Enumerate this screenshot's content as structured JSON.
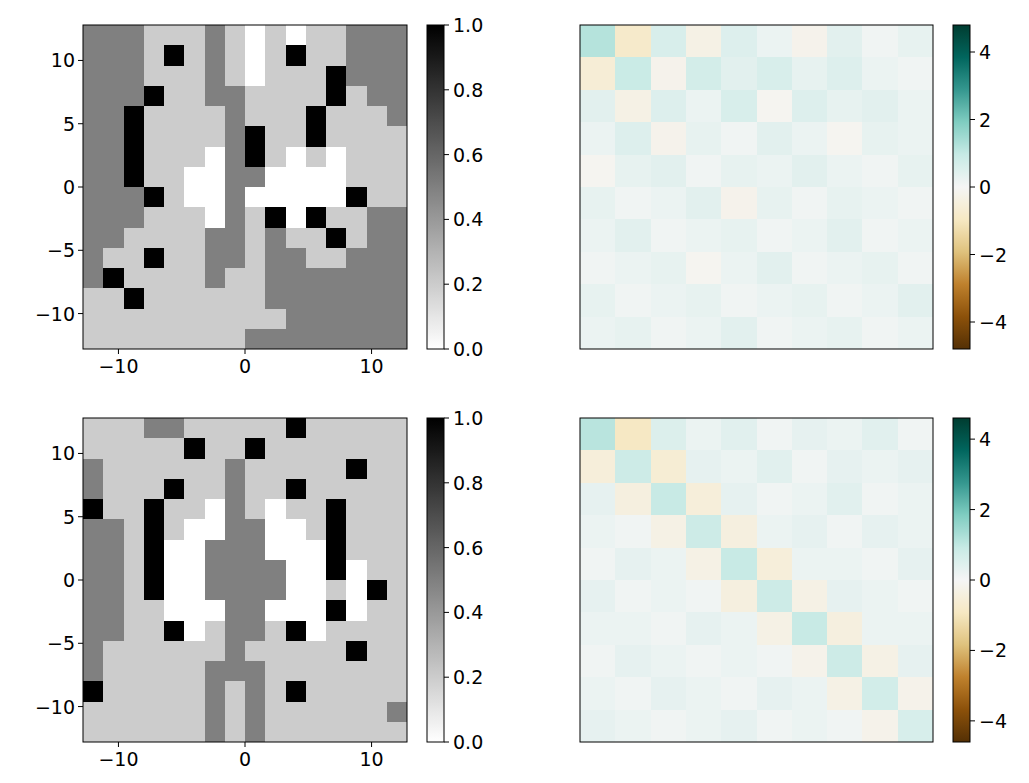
{
  "chart_data": [
    {
      "type": "heatmap",
      "color": "gray_r",
      "xlim": [
        -12.8,
        12.8
      ],
      "ylim": [
        -12.8,
        12.8
      ],
      "xticks": [
        -10,
        0,
        10
      ],
      "yticks": [
        -10,
        -5,
        0,
        5,
        10
      ],
      "colorbar": {
        "range": [
          0,
          1
        ],
        "ticks": [
          {
            "value": 0,
            "label": "0.0"
          },
          {
            "value": 0.2,
            "label": "0.2"
          },
          {
            "value": 0.4,
            "label": "0.4"
          },
          {
            "value": 0.6,
            "label": "0.6"
          },
          {
            "value": 0.8,
            "label": "0.8"
          },
          {
            "value": 1,
            "label": "1.0"
          }
        ]
      },
      "cells": [
        [
          0.5,
          0.5,
          0.5,
          0.2,
          0.2,
          0.2,
          0.5,
          0.2,
          0,
          0.2,
          0,
          0.2,
          0.2,
          0.5,
          0.5,
          0.5
        ],
        [
          0.5,
          0.5,
          0.5,
          0.2,
          1,
          0.2,
          0.5,
          0.2,
          0,
          0.2,
          1,
          0.2,
          0.2,
          0.5,
          0.5,
          0.5
        ],
        [
          0.5,
          0.5,
          0.5,
          0.2,
          0.2,
          0.2,
          0.5,
          0.2,
          0,
          0.2,
          0.2,
          0.2,
          1,
          0.5,
          0.5,
          0.5
        ],
        [
          0.5,
          0.5,
          0.5,
          1,
          0.2,
          0.2,
          0.5,
          0.5,
          0.2,
          0.2,
          0.2,
          0.2,
          1,
          0.2,
          0.5,
          0.5
        ],
        [
          0.5,
          0.5,
          1,
          0.2,
          0.2,
          0.2,
          0.2,
          0.5,
          0.2,
          0.2,
          0.2,
          1,
          0.2,
          0.2,
          0.2,
          0.5
        ],
        [
          0.5,
          0.5,
          1,
          0.2,
          0.2,
          0.2,
          0.2,
          0.5,
          1,
          0.2,
          0.2,
          1,
          0.2,
          0.2,
          0.2,
          0.2
        ],
        [
          0.5,
          0.5,
          1,
          0.2,
          0.2,
          0.2,
          0,
          0.5,
          1,
          0.2,
          0,
          0.2,
          0,
          0.2,
          0.2,
          0.2
        ],
        [
          0.5,
          0.5,
          1,
          0.2,
          0.2,
          0,
          0,
          0.5,
          0.5,
          0,
          0,
          0,
          0,
          0.2,
          0.2,
          0.2
        ],
        [
          0.5,
          0.5,
          0.5,
          1,
          0.2,
          0,
          0,
          0.5,
          0,
          0,
          0,
          0,
          0,
          1,
          0.2,
          0.2
        ],
        [
          0.5,
          0.5,
          0.5,
          0.2,
          0.2,
          0.2,
          0,
          0.5,
          0.2,
          1,
          0,
          1,
          0.2,
          0.2,
          0.5,
          0.5
        ],
        [
          0.5,
          0.5,
          0.2,
          0.2,
          0.2,
          0.2,
          0.5,
          0.5,
          0.2,
          0.5,
          0.2,
          0.2,
          1,
          0.2,
          0.5,
          0.5
        ],
        [
          0.5,
          0.2,
          0.2,
          1,
          0.2,
          0.2,
          0.5,
          0.5,
          0.2,
          0.5,
          0.5,
          0.2,
          0.2,
          0.5,
          0.5,
          0.5
        ],
        [
          0.5,
          1,
          0.2,
          0.2,
          0.2,
          0.2,
          0.5,
          0.2,
          0.2,
          0.5,
          0.5,
          0.5,
          0.5,
          0.5,
          0.5,
          0.5
        ],
        [
          0.2,
          0.2,
          1,
          0.2,
          0.2,
          0.2,
          0.2,
          0.2,
          0.2,
          0.5,
          0.5,
          0.5,
          0.5,
          0.5,
          0.5,
          0.5
        ],
        [
          0.2,
          0.2,
          0.2,
          0.2,
          0.2,
          0.2,
          0.2,
          0.2,
          0.2,
          0.2,
          0.5,
          0.5,
          0.5,
          0.5,
          0.5,
          0.5
        ],
        [
          0.2,
          0.2,
          0.2,
          0.2,
          0.2,
          0.2,
          0.2,
          0.2,
          0.5,
          0.5,
          0.5,
          0.5,
          0.5,
          0.5,
          0.5,
          0.5
        ]
      ]
    },
    {
      "type": "heatmap",
      "color": "BrBG",
      "tick_labels": false,
      "colorbar": {
        "range": [
          -4.8,
          4.8
        ],
        "ticks": [
          -4,
          -2,
          0,
          2,
          4
        ]
      },
      "cells": [
        [
          1.2,
          -0.8,
          0.6,
          -0.3,
          0.5,
          0.2,
          -0.2,
          0.4,
          0.1,
          0.3
        ],
        [
          -0.6,
          0.9,
          -0.2,
          0.7,
          0.4,
          0.6,
          0.3,
          0.5,
          0.2,
          0.1
        ],
        [
          0.4,
          -0.3,
          0.5,
          0.2,
          0.6,
          -0.1,
          0.5,
          0.3,
          0.4,
          0.2
        ],
        [
          0.2,
          0.5,
          -0.2,
          0.3,
          0.1,
          0.4,
          0.2,
          -0.1,
          0.3,
          0.2
        ],
        [
          -0.1,
          0.3,
          0.4,
          0.1,
          0.3,
          0.2,
          0.4,
          0.2,
          0.1,
          0.3
        ],
        [
          0.3,
          0.1,
          0.2,
          0.4,
          -0.2,
          0.3,
          0.1,
          0.3,
          0.2,
          0.1
        ],
        [
          0.2,
          0.4,
          0.1,
          0.2,
          0.3,
          0.1,
          0.2,
          0.4,
          0.1,
          0.2
        ],
        [
          0.1,
          0.2,
          0.3,
          -0.1,
          0.2,
          0.4,
          0.1,
          0.2,
          0.3,
          0.1
        ],
        [
          0.3,
          0.1,
          0.2,
          0.3,
          0.1,
          0.2,
          0.3,
          0.1,
          0.2,
          0.4
        ],
        [
          0.2,
          0.3,
          0.1,
          0.2,
          0.4,
          0.1,
          0.2,
          0.3,
          0.1,
          0.2
        ]
      ]
    },
    {
      "type": "heatmap",
      "color": "gray_r",
      "xlim": [
        -12.8,
        12.8
      ],
      "ylim": [
        -12.8,
        12.8
      ],
      "xticks": [
        -10,
        0,
        10
      ],
      "yticks": [
        -10,
        -5,
        0,
        5,
        10
      ],
      "colorbar": {
        "range": [
          0,
          1
        ],
        "ticks": [
          {
            "value": 0,
            "label": "0.0"
          },
          {
            "value": 0.2,
            "label": "0.2"
          },
          {
            "value": 0.4,
            "label": "0.4"
          },
          {
            "value": 0.6,
            "label": "0.6"
          },
          {
            "value": 0.8,
            "label": "0.8"
          },
          {
            "value": 1,
            "label": "1.0"
          }
        ]
      },
      "cells": [
        [
          0.2,
          0.2,
          0.2,
          0.5,
          0.5,
          0.2,
          0.2,
          0.2,
          0.2,
          0.2,
          1,
          0.2,
          0.2,
          0.2,
          0.2,
          0.2
        ],
        [
          0.2,
          0.2,
          0.2,
          0.2,
          0.2,
          1,
          0.2,
          0.2,
          1,
          0.2,
          0.2,
          0.2,
          0.2,
          0.2,
          0.2,
          0.2
        ],
        [
          0.5,
          0.2,
          0.2,
          0.2,
          0.2,
          0.2,
          0.2,
          0.5,
          0.2,
          0.2,
          0.2,
          0.2,
          0.2,
          1,
          0.2,
          0.2
        ],
        [
          0.5,
          0.2,
          0.2,
          0.2,
          1,
          0.2,
          0.2,
          0.5,
          0.2,
          0.2,
          1,
          0.2,
          0.2,
          0.2,
          0.2,
          0.2
        ],
        [
          1,
          0.2,
          0.2,
          1,
          0.2,
          0.2,
          0,
          0.5,
          0.2,
          0,
          0.2,
          0.2,
          1,
          0.2,
          0.2,
          0.2
        ],
        [
          0.5,
          0.5,
          0.2,
          1,
          0.2,
          0,
          0,
          0.5,
          0.5,
          0,
          0,
          0.2,
          1,
          0.2,
          0.2,
          0.2
        ],
        [
          0.5,
          0.5,
          0.2,
          1,
          0,
          0,
          0.5,
          0.5,
          0.5,
          0,
          0,
          0,
          1,
          0.2,
          0.2,
          0.2
        ],
        [
          0.5,
          0.5,
          0.2,
          1,
          0,
          0,
          0.5,
          0.5,
          0.5,
          0.5,
          0,
          0,
          1,
          0,
          0.2,
          0.2
        ],
        [
          0.5,
          0.5,
          0.2,
          1,
          0,
          0,
          0.5,
          0.5,
          0.5,
          0.5,
          0,
          0,
          0.2,
          0,
          1,
          0.2
        ],
        [
          0.5,
          0.5,
          0.2,
          0.2,
          0,
          0,
          0,
          0.5,
          0.5,
          0,
          0,
          0,
          1,
          0,
          0.2,
          0.2
        ],
        [
          0.5,
          0.5,
          0.2,
          0.2,
          1,
          0,
          0.2,
          0.5,
          0.5,
          0.2,
          1,
          0,
          0.2,
          0.2,
          0.2,
          0.2
        ],
        [
          0.5,
          0.2,
          0.2,
          0.2,
          0.2,
          0.2,
          0.2,
          0.5,
          0.2,
          0.2,
          0.2,
          0.2,
          0.2,
          1,
          0.2,
          0.2
        ],
        [
          0.5,
          0.2,
          0.2,
          0.2,
          0.2,
          0.2,
          0.5,
          0.5,
          0.5,
          0.2,
          0.2,
          0.2,
          0.2,
          0.2,
          0.2,
          0.2
        ],
        [
          1,
          0.2,
          0.2,
          0.2,
          0.2,
          0.2,
          0.5,
          0.2,
          0.5,
          0.2,
          1,
          0.2,
          0.2,
          0.2,
          0.2,
          0.2
        ],
        [
          0.2,
          0.2,
          0.2,
          0.2,
          0.2,
          0.2,
          0.5,
          0.2,
          0.5,
          0.2,
          0.2,
          0.2,
          0.2,
          0.2,
          0.2,
          0.5
        ],
        [
          0.2,
          0.2,
          0.2,
          0.2,
          0.2,
          0.2,
          0.5,
          0.2,
          0.5,
          0.2,
          0.2,
          0.2,
          0.2,
          0.2,
          0.2,
          0.2
        ]
      ]
    },
    {
      "type": "heatmap",
      "color": "BrBG",
      "tick_labels": false,
      "colorbar": {
        "range": [
          -4.6,
          4.6
        ],
        "ticks": [
          -4,
          -2,
          0,
          2,
          4
        ]
      },
      "cells": [
        [
          1.1,
          -0.9,
          0.5,
          0.2,
          0.4,
          0.1,
          0.3,
          0.2,
          0.4,
          0.1
        ],
        [
          -0.5,
          0.8,
          -0.6,
          0.3,
          0.2,
          0.4,
          0.1,
          0.3,
          0.2,
          0.3
        ],
        [
          0.3,
          -0.4,
          0.9,
          -0.5,
          0.3,
          0.1,
          0.2,
          0.4,
          0.1,
          0.2
        ],
        [
          0.2,
          0.1,
          -0.3,
          0.8,
          -0.4,
          0.2,
          0.3,
          0.1,
          0.3,
          0.2
        ],
        [
          0.1,
          0.3,
          0.2,
          -0.3,
          0.9,
          -0.5,
          0.2,
          0.2,
          0.1,
          0.3
        ],
        [
          0.3,
          0.1,
          0.2,
          0.1,
          -0.4,
          0.8,
          -0.3,
          0.3,
          0.2,
          0.1
        ],
        [
          0.2,
          0.2,
          0.1,
          0.3,
          0.2,
          -0.3,
          0.9,
          -0.4,
          0.2,
          0.2
        ],
        [
          0.1,
          0.3,
          0.2,
          0.1,
          0.2,
          0.1,
          -0.2,
          0.8,
          -0.3,
          0.3
        ],
        [
          0.2,
          0.1,
          0.3,
          0.2,
          0.1,
          0.3,
          0.2,
          -0.3,
          0.7,
          -0.2
        ],
        [
          0.3,
          0.2,
          0.1,
          0.2,
          0.3,
          0.1,
          0.2,
          0.1,
          -0.2,
          0.6
        ]
      ]
    }
  ]
}
